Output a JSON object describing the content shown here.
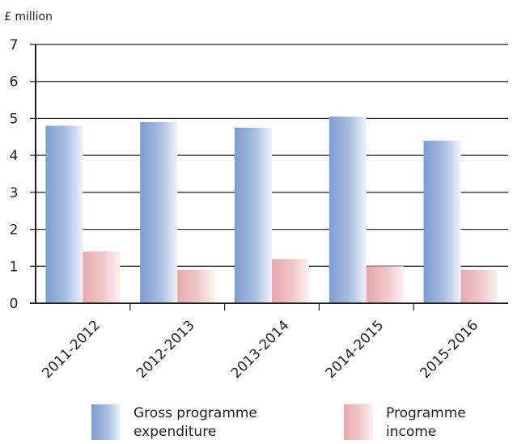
{
  "chart_data": {
    "type": "bar",
    "unit_label": "£ million",
    "categories": [
      "2011-2012",
      "2012-2013",
      "2013-2014",
      "2014-2015",
      "2015-2016"
    ],
    "series": [
      {
        "name": "Gross programme expenditure",
        "legend_lines": [
          "Gross programme",
          "expenditure"
        ],
        "values": [
          4.8,
          4.9,
          4.75,
          5.05,
          4.4
        ],
        "color": "#8ea9d6"
      },
      {
        "name": "Programme income",
        "legend_lines": [
          "Programme",
          "income"
        ],
        "values": [
          1.4,
          0.9,
          1.2,
          1.0,
          0.9
        ],
        "color": "#eab5b8"
      }
    ],
    "yticks": [
      0,
      1,
      2,
      3,
      4,
      5,
      6,
      7
    ],
    "ylim": [
      0,
      7
    ],
    "grid": true,
    "legend_position": "bottom"
  }
}
